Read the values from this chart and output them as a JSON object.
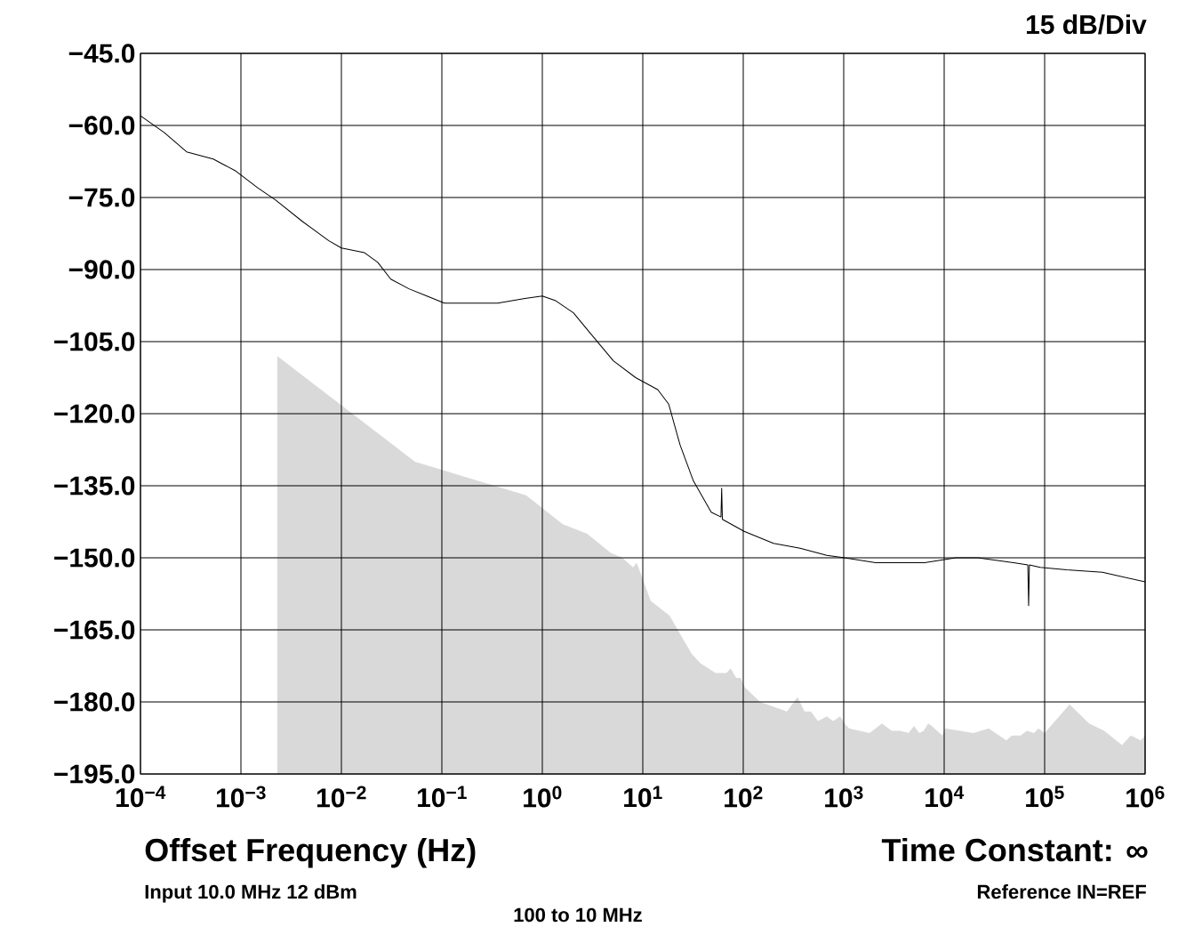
{
  "chart_data": {
    "type": "line",
    "xlabel": "Offset Frequency (Hz)",
    "log": "x",
    "grid": true,
    "xlim": [
      0.0001,
      1000000
    ],
    "ylim": [
      -195,
      -45
    ],
    "xticks": [
      {
        "value": 0.0001,
        "label": "10$^{−4}$"
      },
      {
        "value": 0.001,
        "label": "10$^{−3}$"
      },
      {
        "value": 0.01,
        "label": "10$^{−2}$"
      },
      {
        "value": 0.1,
        "label": "10$^{−1}$"
      },
      {
        "value": 1,
        "label": "10$^{0}$"
      },
      {
        "value": 10,
        "label": "10$^{1}$"
      },
      {
        "value": 100,
        "label": "10$^{2}$"
      },
      {
        "value": 1000,
        "label": "10$^{3}$"
      },
      {
        "value": 10000,
        "label": "10$^{4}$"
      },
      {
        "value": 100000,
        "label": "10$^{5}$"
      },
      {
        "value": 1000000,
        "label": "10$^{6}$"
      }
    ],
    "yticks": [
      {
        "value": -45,
        "label": "−45.0"
      },
      {
        "value": -60,
        "label": "−60.0"
      },
      {
        "value": -75,
        "label": "−75.0"
      },
      {
        "value": -90,
        "label": "−90.0"
      },
      {
        "value": -105,
        "label": "−105.0"
      },
      {
        "value": -120,
        "label": "−120.0"
      },
      {
        "value": -135,
        "label": "−135.0"
      },
      {
        "value": -150,
        "label": "−150.0"
      },
      {
        "value": -165,
        "label": "−165.0"
      },
      {
        "value": -180,
        "label": "−180.0"
      },
      {
        "value": -195,
        "label": "−195.0"
      }
    ],
    "annotations": [
      "15 dB/Div",
      "Time Constant: ∞",
      "Input 10.0 MHz 12 dBm",
      "Reference IN=REF",
      "100 to 10 MHz"
    ],
    "series": [
      {
        "type": "area",
        "color": "#d9d9d9",
        "x": [
          0.0023,
          0.0023,
          0.054,
          0.69,
          1.6,
          2.8,
          4.8,
          6.25,
          8.0,
          8.7,
          12.0,
          18.4,
          30.7,
          37.6,
          45,
          53,
          68,
          75,
          85,
          94,
          104,
          147,
          272,
          347,
          408,
          471,
          554,
          613,
          679,
          783,
          923,
          1020,
          1130,
          1810,
          2400,
          3010,
          3680,
          4420,
          5000,
          5650,
          6250,
          6930,
          7520,
          9600,
          10200,
          19600,
          27700,
          41600,
          47100,
          57700,
          66500,
          78400,
          86800,
          100000,
          177000,
          277000,
          392000,
          589000,
          721000,
          904000,
          1000000,
          1000000
        ],
        "values": [
          -195,
          -108,
          -130,
          -137,
          -143,
          -145,
          -149,
          -150,
          -152,
          -151,
          -159,
          -162,
          -170,
          -172,
          -173,
          -174,
          -174,
          -173,
          -175,
          -175,
          -177,
          -180,
          -182,
          -179,
          -182,
          -182,
          -184,
          -183.5,
          -183,
          -184,
          -183,
          -184.5,
          -185.5,
          -186.5,
          -184.5,
          -186,
          -186,
          -186.5,
          -185,
          -186.5,
          -186,
          -184.5,
          -185,
          -187,
          -185.5,
          -186.5,
          -185.5,
          -188,
          -187,
          -187,
          -186,
          -186.5,
          -185.5,
          -186.5,
          -180.5,
          -184.5,
          -186,
          -189,
          -187,
          -188,
          -187,
          -195
        ]
      },
      {
        "color": "#000000",
        "x": [
          0.0001,
          0.000173,
          0.000288,
          0.00053,
          0.00089,
          0.00147,
          0.0022,
          0.0041,
          0.0075,
          0.01,
          0.017,
          0.023,
          0.031,
          0.047,
          0.071,
          0.106,
          0.24,
          0.36,
          0.67,
          1.0,
          1.36,
          2.04,
          3.07,
          5.1,
          8.5,
          14.1,
          18.1,
          23.5,
          31.9,
          48,
          60,
          61,
          62,
          102,
          200,
          368,
          679,
          1020,
          2080,
          6380,
          13000,
          21700,
          32600,
          49000,
          68000,
          69300,
          70500,
          90400,
          166000,
          376000,
          1000000
        ],
        "values": [
          -58,
          -61.5,
          -65.5,
          -67,
          -69.5,
          -73,
          -75.5,
          -80,
          -84,
          -85.5,
          -86.5,
          -88.5,
          -92,
          -94,
          -95.5,
          -97,
          -97,
          -97,
          -96,
          -95.5,
          -96.5,
          -99,
          -103.5,
          -109,
          -112.5,
          -115,
          -118,
          -126.5,
          -134,
          -140.5,
          -141.5,
          -135.5,
          -142,
          -144.5,
          -147,
          -148,
          -149.5,
          -150,
          -151,
          -151,
          -150,
          -150,
          -150.5,
          -151,
          -151.5,
          -160,
          -151.5,
          -152,
          -152.5,
          -153,
          -155
        ]
      }
    ]
  }
}
